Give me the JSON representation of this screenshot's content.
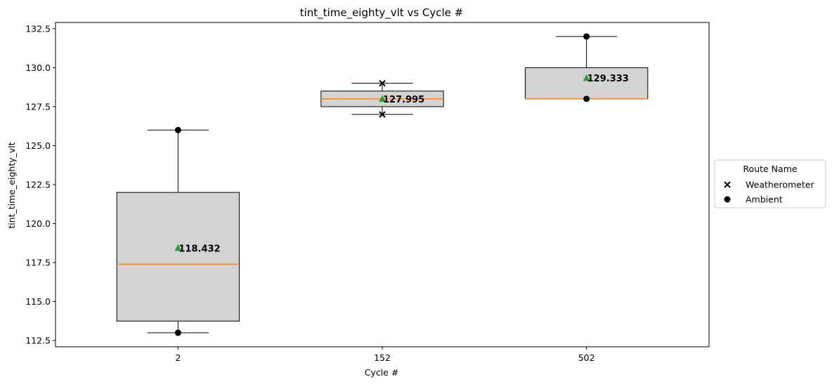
{
  "chart_data": {
    "type": "box",
    "title": "tint_time_eighty_vlt vs Cycle #",
    "xlabel": "Cycle #",
    "ylabel": "tint_time_eighty_vlt",
    "ylim": [
      112.1,
      132.9
    ],
    "yticks": [
      112.5,
      115.0,
      117.5,
      120.0,
      122.5,
      125.0,
      127.5,
      130.0,
      132.5
    ],
    "ytick_labels": [
      "112.5",
      "115.0",
      "117.5",
      "120.0",
      "122.5",
      "125.0",
      "127.5",
      "130.0",
      "132.5"
    ],
    "categories": [
      "2",
      "152",
      "502"
    ],
    "boxes": [
      {
        "category": "2",
        "whisker_low": 113.0,
        "q1": 113.75,
        "median": 117.4,
        "q3": 122.0,
        "whisker_high": 126.0,
        "mean": 118.432,
        "mean_label": "118.432"
      },
      {
        "category": "152",
        "whisker_low": 127.0,
        "q1": 127.5,
        "median": 128.0,
        "q3": 128.5,
        "whisker_high": 129.0,
        "mean": 127.995,
        "mean_label": "127.995"
      },
      {
        "category": "502",
        "whisker_low": 128.0,
        "q1": 128.0,
        "median": 128.0,
        "q3": 130.0,
        "whisker_high": 132.0,
        "mean": 129.333,
        "mean_label": "129.333"
      }
    ],
    "points": [
      {
        "category": "2",
        "y": 126.0,
        "series": "Ambient"
      },
      {
        "category": "2",
        "y": 113.0,
        "series": "Ambient"
      },
      {
        "category": "152",
        "y": 129.0,
        "series": "Weatherometer"
      },
      {
        "category": "152",
        "y": 127.0,
        "series": "Weatherometer"
      },
      {
        "category": "502",
        "y": 132.0,
        "series": "Ambient"
      },
      {
        "category": "502",
        "y": 128.0,
        "series": "Ambient"
      }
    ],
    "legend": {
      "title": "Route Name",
      "placement": "center-right outside",
      "entries": [
        {
          "label": "Weatherometer",
          "marker": "x"
        },
        {
          "label": "Ambient",
          "marker": "circle"
        }
      ]
    },
    "colors": {
      "box_fill": "#d3d3d3",
      "median": "#ff7f0e",
      "mean": "#2ca02c",
      "edge": "#000000"
    },
    "grid": false
  }
}
